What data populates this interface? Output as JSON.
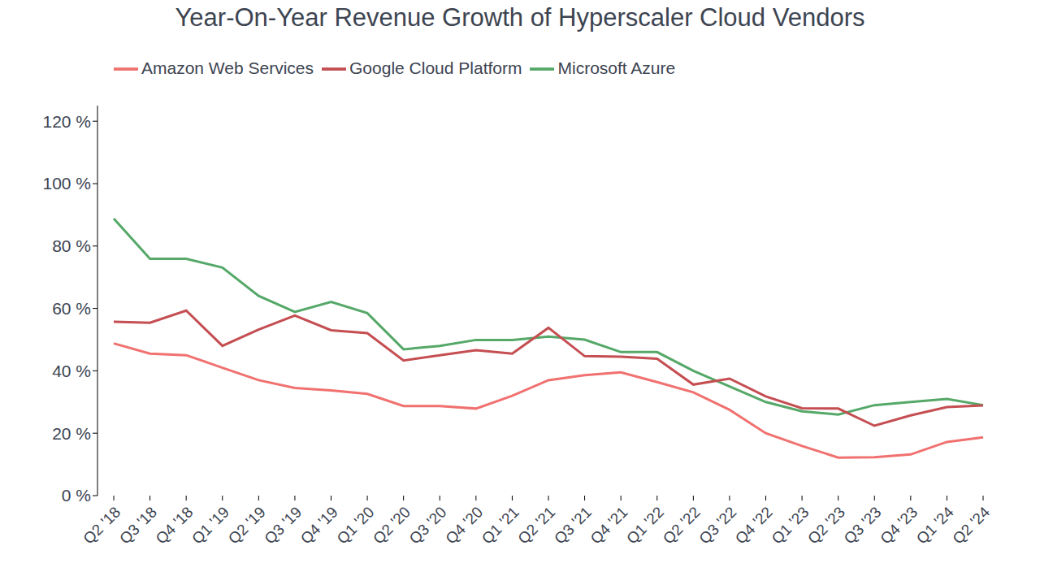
{
  "chart_data": {
    "type": "line",
    "title": "Year-On-Year Revenue Growth of Hyperscaler Cloud Vendors",
    "categories": [
      "Q2 '18",
      "Q3 '18",
      "Q4 '18",
      "Q1 '19",
      "Q2 '19",
      "Q3 '19",
      "Q4 '19",
      "Q1 '20",
      "Q2 '20",
      "Q3 '20",
      "Q4 '20",
      "Q1 '21",
      "Q2 '21",
      "Q3 '21",
      "Q4 '21",
      "Q1 '22",
      "Q2 '22",
      "Q3 '22",
      "Q4 '22",
      "Q1 '23",
      "Q2 '23",
      "Q3 '23",
      "Q4 '23",
      "Q1 '24",
      "Q2 '24"
    ],
    "series": [
      {
        "name": "Amazon Web Services",
        "color": "#f0716f",
        "values": [
          48.8,
          45.5,
          45,
          41,
          37,
          34.5,
          33.7,
          32.6,
          28.7,
          28.7,
          27.9,
          32,
          37,
          38.6,
          39.5,
          36.4,
          33.1,
          27.5,
          20,
          15.9,
          12.2,
          12.3,
          13.2,
          17.2,
          18.7
        ]
      },
      {
        "name": "Microsoft Azure",
        "color": "#55a868",
        "values": [
          88.8,
          75.9,
          75.9,
          73.1,
          64,
          58.9,
          62.1,
          58.5,
          46.9,
          48,
          49.9,
          49.9,
          51,
          50,
          46,
          46,
          40,
          35,
          30,
          27,
          26,
          29,
          30,
          31,
          29
        ]
      },
      {
        "name": "Google Cloud Platform",
        "color": "#c44e52",
        "values": [
          55.7,
          55.4,
          59.3,
          48,
          53.2,
          57.7,
          53,
          52.1,
          43.3,
          45,
          46.6,
          45.5,
          53.8,
          44.7,
          44.5,
          43.9,
          35.6,
          37.5,
          31.8,
          28,
          27.9,
          22.4,
          25.7,
          28.4,
          28.9
        ]
      }
    ],
    "ylim": [
      0,
      125
    ],
    "yticks": [
      {
        "value": 0,
        "label": "0 %"
      },
      {
        "value": 20,
        "label": "20 %"
      },
      {
        "value": 40,
        "label": "40 %"
      },
      {
        "value": 60,
        "label": "60 %"
      },
      {
        "value": 80,
        "label": "80 %"
      },
      {
        "value": 100,
        "label": "100 %"
      },
      {
        "value": 120,
        "label": "120 %"
      }
    ],
    "grid": false,
    "legend": "top-left"
  }
}
